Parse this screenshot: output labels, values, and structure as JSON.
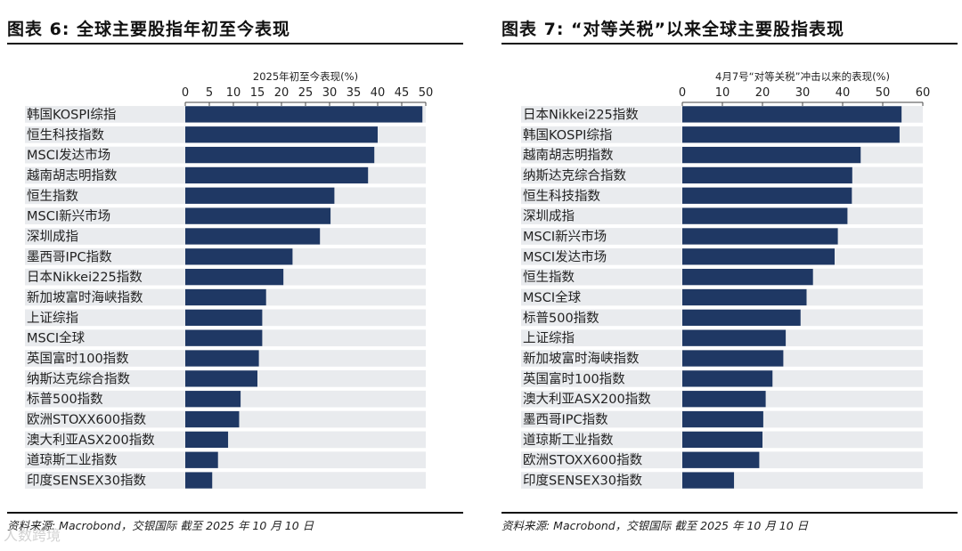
{
  "left": {
    "title": "图表 6: 全球主要股指年初至今表现",
    "source": "资料来源: Macrobond，交银国际  截至 2025 年 10 月 10 日"
  },
  "right": {
    "title": "图表 7: “对等关税”以来全球主要股指表现",
    "source": "资料来源: Macrobond，交银国际  截至 2025 年 10 月 10 日"
  },
  "watermark": "人数跨境",
  "colors": {
    "bar": "#1f3864",
    "band": "#e9ebee",
    "axis": "#444444"
  },
  "chart_data": [
    {
      "type": "bar",
      "orientation": "horizontal",
      "title": "2025年初至今表现(%)",
      "xlabel": "",
      "ylabel": "",
      "xlim": [
        0,
        50
      ],
      "ticks": [
        0,
        5,
        10,
        15,
        20,
        25,
        30,
        35,
        40,
        45,
        50
      ],
      "categories": [
        "韩国KOSPI综指",
        "恒生科技指数",
        "MSCI发达市场",
        "越南胡志明指数",
        "恒生指数",
        "MSCI新兴市场",
        "深圳成指",
        "墨西哥IPC指数",
        "日本Nikkei225指数",
        "新加坡富时海峡指数",
        "上证综指",
        "MSCI全球",
        "英国富时100指数",
        "纳斯达克综合指数",
        "标普500指数",
        "欧洲STOXX600指数",
        "澳大利亚ASX200指数",
        "道琼斯工业指数",
        "印度SENSEX30指数"
      ],
      "values": [
        49.3,
        40.0,
        39.3,
        38.0,
        31.0,
        30.2,
        28.0,
        22.3,
        20.4,
        16.8,
        16.0,
        16.0,
        15.3,
        15.0,
        11.5,
        11.2,
        8.9,
        6.8,
        5.6
      ]
    },
    {
      "type": "bar",
      "orientation": "horizontal",
      "title": "4月7号“对等关税”冲击以来的表现(%)",
      "xlabel": "",
      "ylabel": "",
      "xlim": [
        0,
        60
      ],
      "ticks": [
        0,
        10,
        20,
        30,
        40,
        50,
        60
      ],
      "categories": [
        "日本Nikkei225指数",
        "韩国KOSPI综指",
        "越南胡志明指数",
        "纳斯达克综合指数",
        "恒生科技指数",
        "深圳成指",
        "MSCI新兴市场",
        "MSCI发达市场",
        "恒生指数",
        "MSCI全球",
        "标普500指数",
        "上证综指",
        "新加坡富时海峡指数",
        "英国富时100指数",
        "澳大利亚ASX200指数",
        "墨西哥IPC指数",
        "道琼斯工业指数",
        "欧洲STOXX600指数",
        "印度SENSEX30指数"
      ],
      "values": [
        54.7,
        54.2,
        44.5,
        42.4,
        42.3,
        41.2,
        38.8,
        38.0,
        32.6,
        31.0,
        29.5,
        25.8,
        25.2,
        22.5,
        20.8,
        20.2,
        20.0,
        19.2,
        12.9
      ]
    }
  ]
}
